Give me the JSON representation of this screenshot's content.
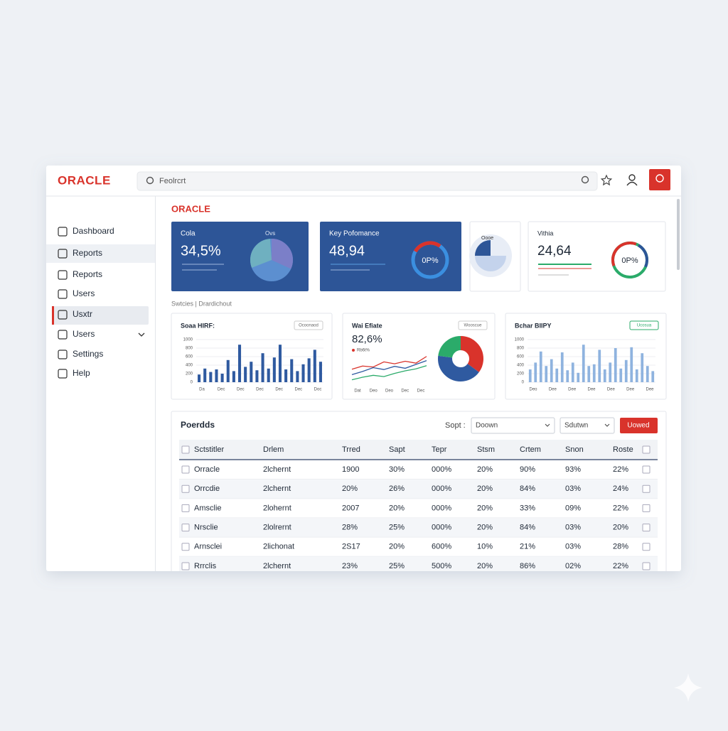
{
  "header": {
    "logo": "ORACLE",
    "search": "Feolrcrt"
  },
  "sidebar": {
    "items": [
      "Dashboard",
      "Reports",
      "Reports",
      "Users",
      "Usxtr",
      "Users",
      "Settings",
      "Help"
    ]
  },
  "content": {
    "logo": "ORACLE",
    "section_label": "Swtcies | Drardichout",
    "kpis": [
      {
        "title": "Cola",
        "subtitle": "Ovs",
        "value": "34,5%"
      },
      {
        "title": "Key Pofomance",
        "value": "48,94",
        "badge": "0P%"
      },
      {
        "title": "Oooe"
      },
      {
        "title": "Vithia",
        "value": "24,64",
        "badge": "0P%"
      }
    ],
    "charts": [
      {
        "type": "bar",
        "title": "Soaa HIRF:",
        "button": "Ocoonaod",
        "color": "#2f5aa0",
        "ylim": [
          0,
          1000
        ],
        "yticks": [
          0,
          200,
          400,
          600,
          800,
          1000
        ],
        "grid": true,
        "values": [
          180,
          320,
          240,
          300,
          200,
          520,
          260,
          880,
          360,
          480,
          280,
          680,
          320,
          580,
          880,
          300,
          540,
          260,
          420,
          560,
          760,
          480
        ],
        "x_labels": [
          "Da",
          "Dec",
          "Dec",
          "Dec",
          "Dec",
          "Dec",
          "Doc"
        ]
      },
      {
        "type": "line",
        "title": "Wai Efiate",
        "value": "82,6%",
        "legend": "Rb6t%",
        "button": "Wooscue",
        "ylim": [
          0,
          100
        ],
        "series": [
          {
            "color": "#d9332b",
            "values": [
              45,
              55,
              52,
              68,
              62,
              70,
              64,
              85
            ]
          },
          {
            "color": "#2f5aa0",
            "values": [
              28,
              38,
              50,
              44,
              54,
              48,
              60,
              72
            ]
          },
          {
            "color": "#2bab6a",
            "values": [
              12,
              20,
              26,
              22,
              32,
              40,
              46,
              56
            ]
          }
        ],
        "x_labels": [
          "Dat",
          "Deo",
          "Deo",
          "Dec",
          "Dec"
        ],
        "donut": [
          {
            "color": "#d9332b",
            "value": 35
          },
          {
            "color": "#2f5aa0",
            "value": 42
          },
          {
            "color": "#2bab6a",
            "value": 23
          }
        ]
      },
      {
        "type": "bar",
        "title": "Bchar BIIPY",
        "button": "Ucosua",
        "color": "#8fb3df",
        "ylim": [
          0,
          1000
        ],
        "yticks": [
          0,
          200,
          400,
          600,
          800,
          1000
        ],
        "grid": true,
        "values": [
          300,
          460,
          720,
          380,
          540,
          320,
          700,
          280,
          460,
          220,
          880,
          380,
          420,
          760,
          300,
          460,
          800,
          320,
          520,
          820,
          300,
          680,
          380,
          260
        ],
        "x_labels": [
          "Deo",
          "Dee",
          "Dee",
          "Dee",
          "Dee",
          "Dee",
          "Dee"
        ]
      }
    ],
    "table": {
      "title": "Poerdds",
      "sort_label": "Sopt :",
      "dropdowns": [
        "Doown",
        "Sdutwn"
      ],
      "button": "Uowed",
      "columns": [
        "Sctstitler",
        "Drlem",
        "Trred",
        "Sapt",
        "Tepr",
        "Stsm",
        "Crtem",
        "Snon",
        "Roste"
      ],
      "rows": [
        [
          "Orracle",
          "2lchernt",
          "1900",
          "30%",
          "000%",
          "20%",
          "90%",
          "93%",
          "22%"
        ],
        [
          "Orrcdie",
          "2lchernt",
          "20%",
          "26%",
          "000%",
          "20%",
          "84%",
          "03%",
          "24%"
        ],
        [
          "Amsclie",
          "2lohernt",
          "2007",
          "20%",
          "000%",
          "20%",
          "33%",
          "09%",
          "22%"
        ],
        [
          "Nrsclie",
          "2lolrernt",
          "28%",
          "25%",
          "000%",
          "20%",
          "84%",
          "03%",
          "20%"
        ],
        [
          "Arnsclei",
          "2lichonat",
          "2S17",
          "20%",
          "600%",
          "10%",
          "21%",
          "03%",
          "28%"
        ],
        [
          "Rrrclis",
          "2lchernt",
          "23%",
          "25%",
          "500%",
          "20%",
          "86%",
          "02%",
          "22%"
        ]
      ]
    }
  }
}
